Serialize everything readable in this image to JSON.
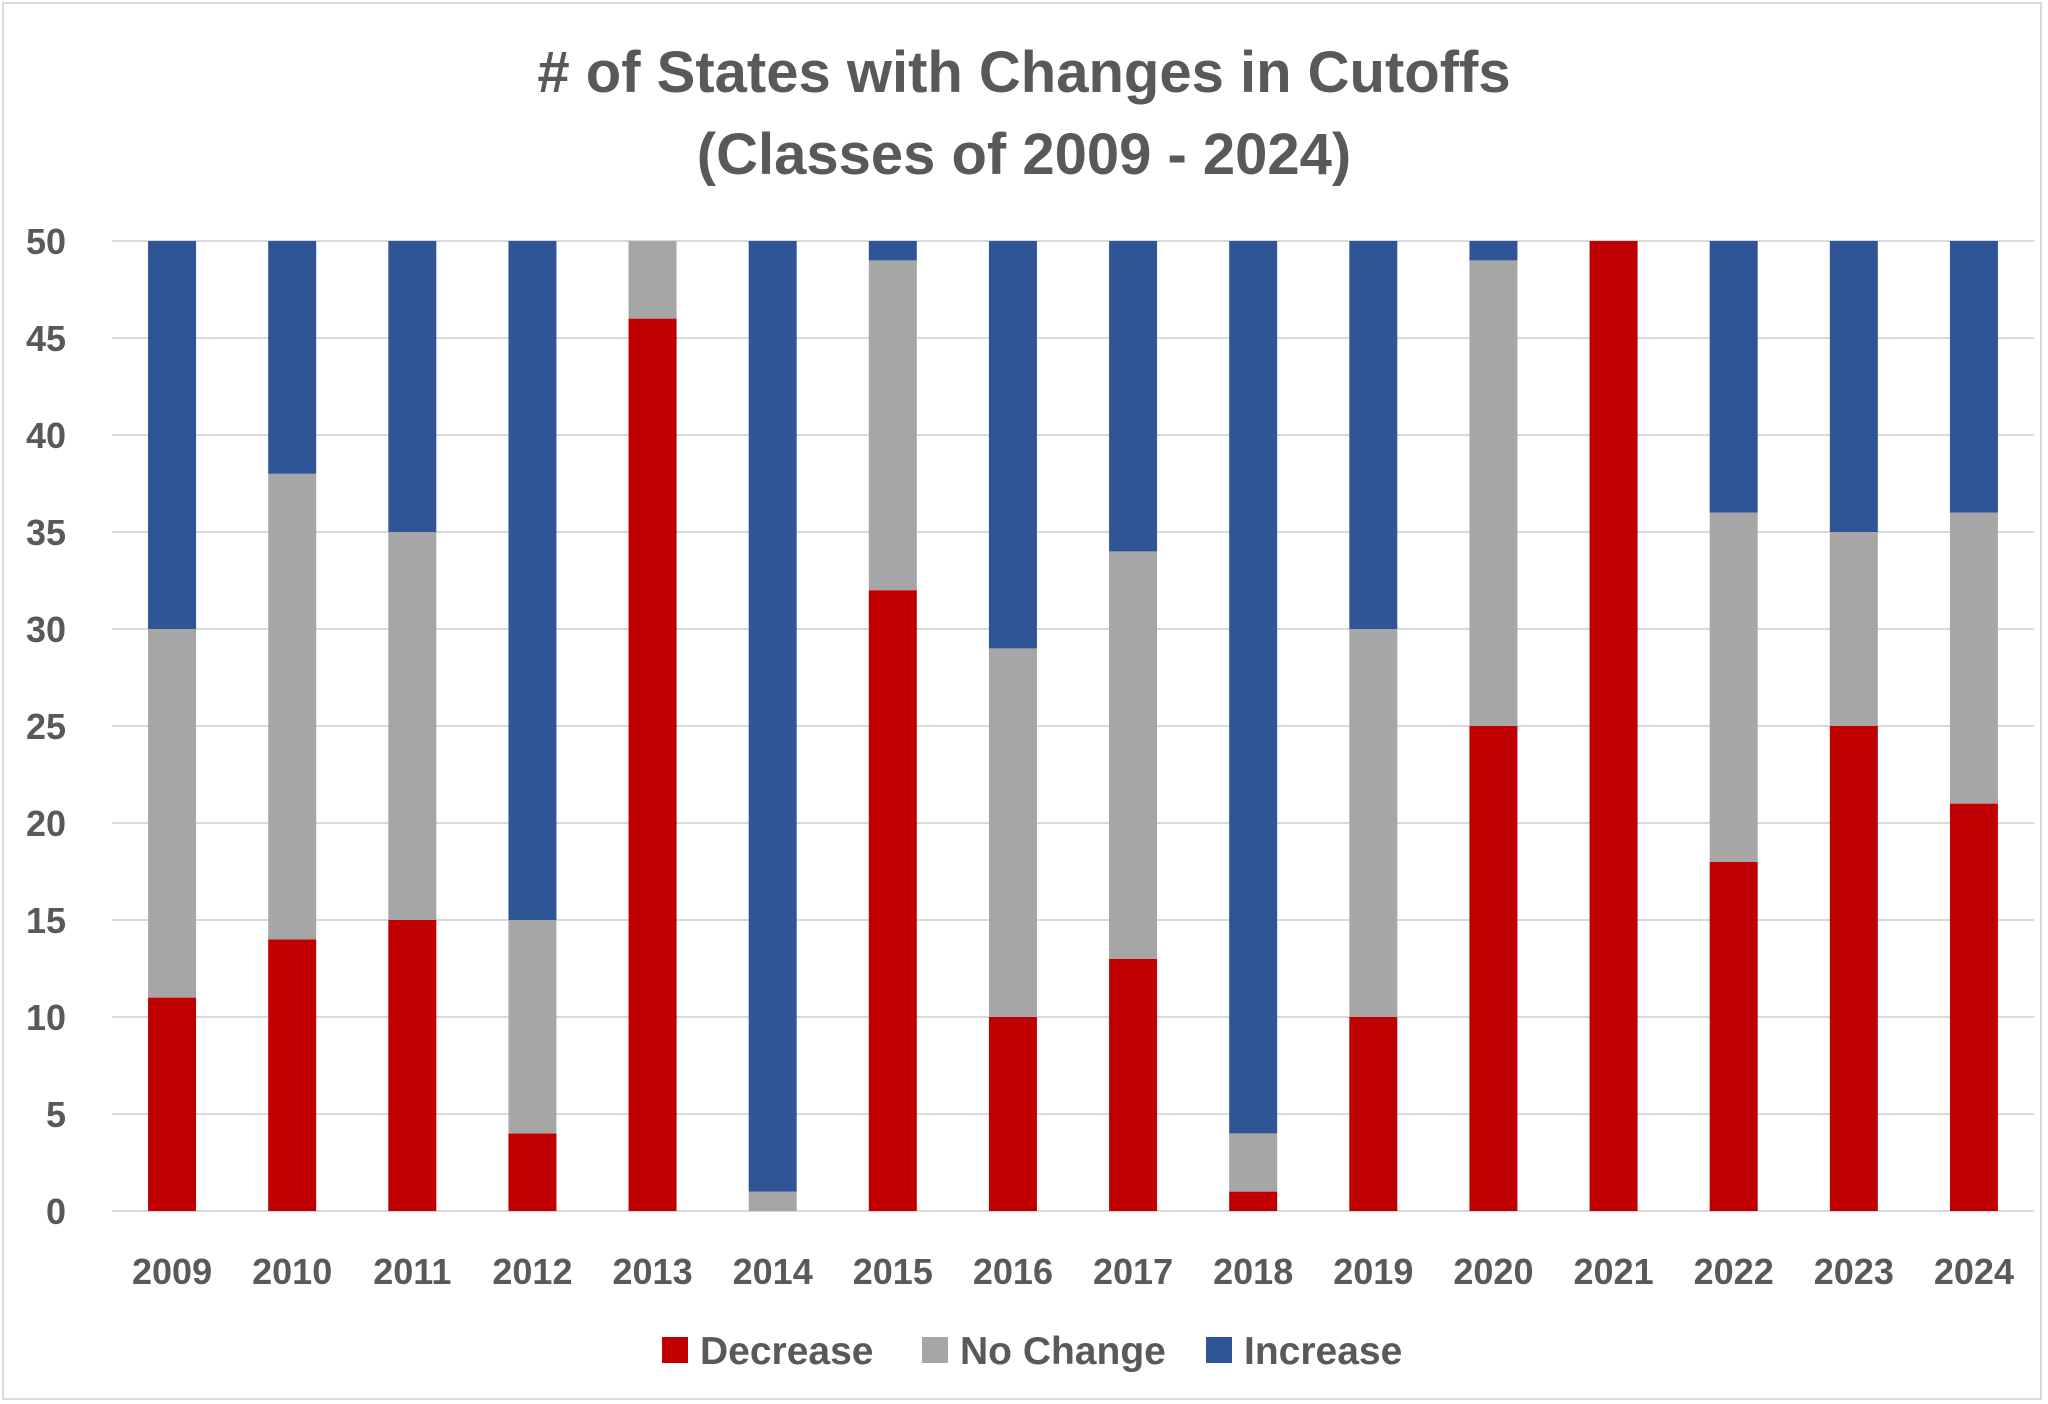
{
  "chart_data": {
    "type": "bar",
    "stacked": true,
    "title_lines": [
      "# of States with Changes in Cutoffs",
      "(Classes of 2009 - 2024)"
    ],
    "categories": [
      "2009",
      "2010",
      "2011",
      "2012",
      "2013",
      "2014",
      "2015",
      "2016",
      "2017",
      "2018",
      "2019",
      "2020",
      "2021",
      "2022",
      "2023",
      "2024"
    ],
    "series": [
      {
        "name": "Decrease",
        "color": "#c00000",
        "values": [
          11,
          14,
          15,
          4,
          46,
          0,
          32,
          10,
          13,
          1,
          10,
          25,
          50,
          18,
          25,
          21
        ]
      },
      {
        "name": "No Change",
        "color": "#a6a6a6",
        "values": [
          19,
          24,
          20,
          11,
          4,
          1,
          17,
          19,
          21,
          3,
          20,
          24,
          0,
          18,
          10,
          15
        ]
      },
      {
        "name": "Increase",
        "color": "#2f5597",
        "values": [
          20,
          12,
          15,
          35,
          0,
          49,
          1,
          21,
          16,
          46,
          20,
          1,
          0,
          14,
          15,
          14
        ]
      }
    ],
    "y_ticks": [
      "0",
      "5",
      "10",
      "15",
      "20",
      "25",
      "30",
      "35",
      "40",
      "45",
      "50"
    ],
    "ylim": [
      0,
      50
    ],
    "grid": true,
    "legend_position": "bottom"
  }
}
